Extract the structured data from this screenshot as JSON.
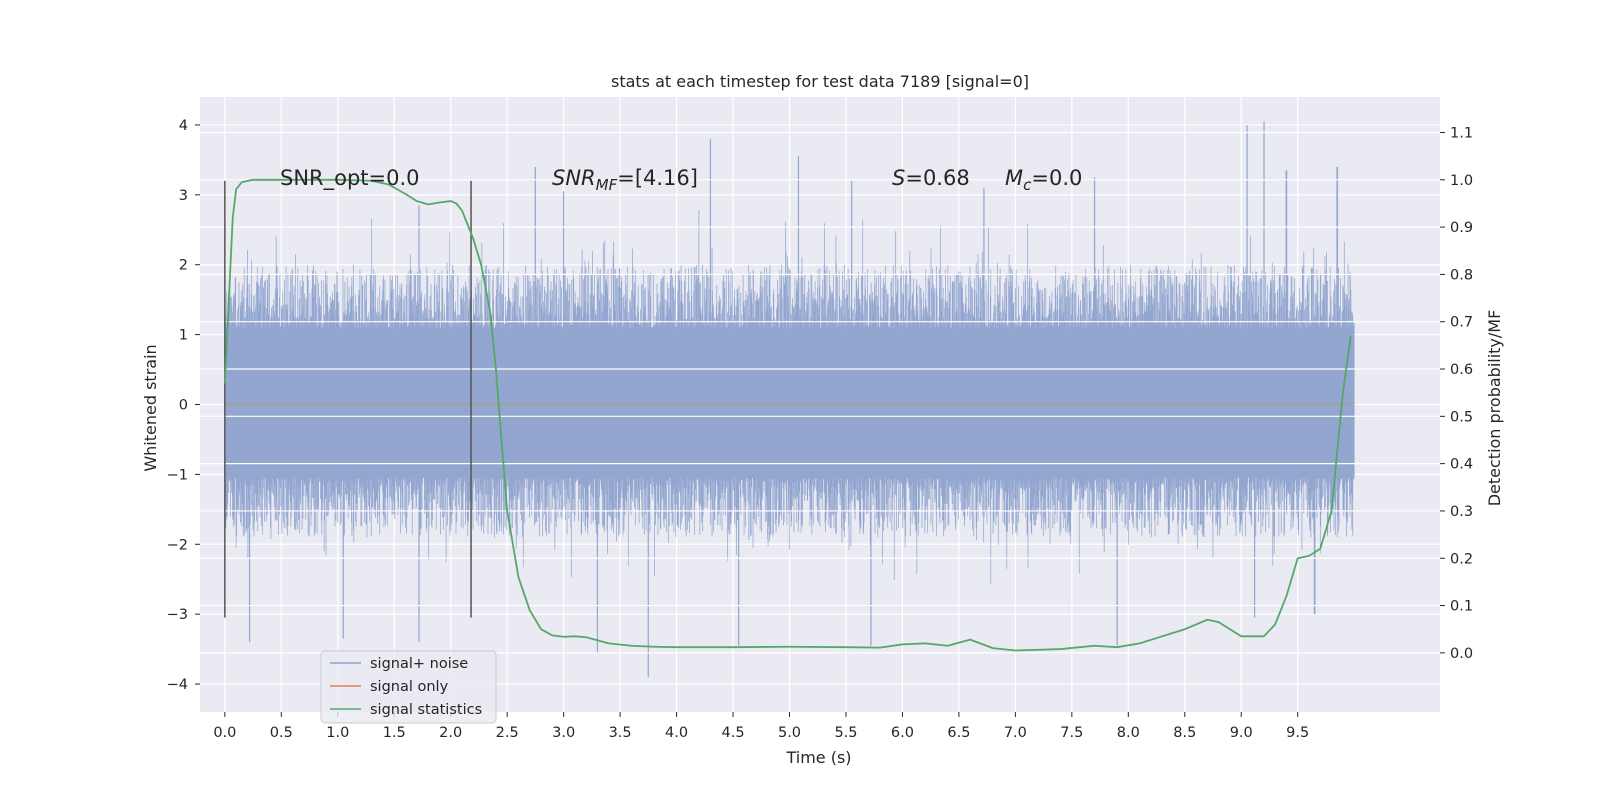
{
  "chart_data": {
    "type": "line",
    "title": "stats at each timestep for test data 7189 [signal=0]",
    "xlabel": "Time (s)",
    "ylabel": "Whitened strain",
    "y2label": "Detection probability/MF",
    "xlim": [
      -0.22,
      10.76
    ],
    "ylim": [
      -4.4,
      4.4
    ],
    "y2lim": [
      -0.125,
      1.175
    ],
    "x_ticks": [
      0.0,
      0.5,
      1.0,
      1.5,
      2.0,
      2.5,
      3.0,
      3.5,
      4.0,
      4.5,
      5.0,
      5.5,
      6.0,
      6.5,
      7.0,
      7.5,
      8.0,
      8.5,
      9.0,
      9.5
    ],
    "x_tick_labels": [
      "0.0",
      "0.5",
      "1.0",
      "1.5",
      "2.0",
      "2.5",
      "3.0",
      "3.5",
      "4.0",
      "4.5",
      "5.0",
      "5.5",
      "6.0",
      "6.5",
      "7.0",
      "7.5",
      "8.0",
      "8.5",
      "9.0",
      "9.5"
    ],
    "y_ticks": [
      4,
      3,
      2,
      1,
      0,
      -1,
      -2,
      -3,
      -4
    ],
    "y_tick_labels": [
      "4",
      "3",
      "2",
      "1",
      "0",
      "−1",
      "−2",
      "−3",
      "−4"
    ],
    "y2_ticks": [
      1.1,
      1.0,
      0.9,
      0.8,
      0.7,
      0.6,
      0.5,
      0.4,
      0.3,
      0.2,
      0.1,
      0.0
    ],
    "y2_tick_labels": [
      "1.1",
      "1.0",
      "0.9",
      "0.8",
      "0.7",
      "0.6",
      "0.5",
      "0.4",
      "0.3",
      "0.2",
      "0.1",
      "0.0"
    ],
    "grid": true,
    "legend_position": "lower-left",
    "series": [
      {
        "name": "signal+ noise",
        "axis": "left",
        "color": "#8ea2cd",
        "note_style": "dense noise",
        "x_range": [
          0.0,
          10.0
        ],
        "envelope": {
          "typical_max": 2.0,
          "typical_min": -1.9,
          "peak_max": 4.05,
          "peak_min": -3.9
        },
        "peaks": [
          [
            1.72,
            2.85
          ],
          [
            2.75,
            3.4
          ],
          [
            3.0,
            3.05
          ],
          [
            4.3,
            3.8
          ],
          [
            5.08,
            3.55
          ],
          [
            5.55,
            3.2
          ],
          [
            6.72,
            3.1
          ],
          [
            7.7,
            3.25
          ],
          [
            9.05,
            4.0
          ],
          [
            9.2,
            4.05
          ],
          [
            9.4,
            3.35
          ],
          [
            9.85,
            3.4
          ]
        ],
        "troughs": [
          [
            0.22,
            -3.4
          ],
          [
            1.05,
            -3.35
          ],
          [
            1.72,
            -3.4
          ],
          [
            3.3,
            -3.55
          ],
          [
            3.75,
            -3.9
          ],
          [
            4.55,
            -3.45
          ],
          [
            5.72,
            -3.45
          ],
          [
            7.9,
            -3.45
          ],
          [
            9.12,
            -3.05
          ],
          [
            9.65,
            -3.0
          ]
        ]
      },
      {
        "name": "signal only",
        "axis": "left",
        "color": "#dd8452",
        "x": [
          0.0,
          10.0
        ],
        "y": [
          0.0,
          0.0
        ]
      },
      {
        "name": "signal statistics",
        "axis": "right",
        "color": "#55a868",
        "x": [
          0.0,
          0.03,
          0.07,
          0.1,
          0.15,
          0.25,
          0.5,
          1.0,
          1.3,
          1.45,
          1.6,
          1.7,
          1.8,
          1.9,
          2.0,
          2.05,
          2.1,
          2.15,
          2.2,
          2.27,
          2.35,
          2.4,
          2.45,
          2.5,
          2.6,
          2.7,
          2.8,
          2.9,
          3.0,
          3.1,
          3.2,
          3.4,
          3.6,
          3.8,
          4.0,
          4.5,
          5.0,
          5.5,
          5.8,
          6.0,
          6.2,
          6.4,
          6.6,
          6.8,
          7.0,
          7.4,
          7.7,
          7.9,
          8.1,
          8.3,
          8.5,
          8.7,
          8.8,
          8.9,
          9.0,
          9.2,
          9.3,
          9.4,
          9.5,
          9.6,
          9.7,
          9.8,
          9.9,
          9.97
        ],
        "y": [
          0.57,
          0.72,
          0.92,
          0.98,
          0.995,
          1.0,
          1.0,
          1.0,
          0.998,
          0.99,
          0.97,
          0.955,
          0.948,
          0.952,
          0.955,
          0.95,
          0.935,
          0.905,
          0.875,
          0.82,
          0.72,
          0.6,
          0.45,
          0.3,
          0.16,
          0.09,
          0.05,
          0.037,
          0.034,
          0.035,
          0.033,
          0.02,
          0.015,
          0.013,
          0.012,
          0.012,
          0.013,
          0.012,
          0.011,
          0.018,
          0.02,
          0.015,
          0.028,
          0.01,
          0.005,
          0.008,
          0.015,
          0.012,
          0.02,
          0.035,
          0.05,
          0.07,
          0.065,
          0.05,
          0.035,
          0.035,
          0.06,
          0.12,
          0.2,
          0.205,
          0.22,
          0.3,
          0.55,
          0.67
        ]
      }
    ],
    "vlines": [
      {
        "x": 0.0,
        "ymin": -3.05,
        "ymax": 3.2,
        "color": "#555555"
      },
      {
        "x": 2.18,
        "ymin": -3.05,
        "ymax": 3.2,
        "color": "#555555"
      }
    ],
    "annotations": {
      "snr_opt": "SNR_opt=0.0",
      "snr_mf_main": "SNR",
      "snr_mf_sub": "MF",
      "snr_mf_value": "=[4.16]",
      "s_main": "S",
      "s_value": "=0.68",
      "mc_main": "M",
      "mc_sub": "c",
      "mc_value": "=0.0"
    }
  }
}
